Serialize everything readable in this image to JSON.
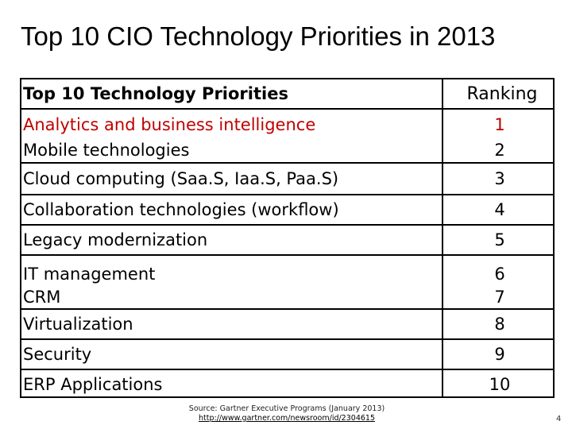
{
  "slide": {
    "title": "Top 10 CIO Technology Priorities in 2013",
    "page_number": "4"
  },
  "table": {
    "header": {
      "priority": "Top 10 Technology Priorities",
      "ranking": "Ranking"
    },
    "rows": [
      {
        "lines": [
          "Analytics and business intelligence",
          "Mobile technologies"
        ],
        "ranks": [
          "1",
          "2"
        ]
      },
      {
        "lines": [
          "Cloud computing (Saa.S, Iaa.S, Paa.S)"
        ],
        "ranks": [
          "3"
        ]
      },
      {
        "lines": [
          "Collaboration technologies (workflow)"
        ],
        "ranks": [
          "4"
        ]
      },
      {
        "lines": [
          "Legacy modernization"
        ],
        "ranks": [
          "5"
        ]
      },
      {
        "lines": [
          "IT management",
          "CRM"
        ],
        "ranks": [
          "6",
          "7"
        ]
      },
      {
        "lines": [
          "Virtualization"
        ],
        "ranks": [
          "8"
        ]
      },
      {
        "lines": [
          "Security"
        ],
        "ranks": [
          "9"
        ]
      },
      {
        "lines": [
          "ERP Applications"
        ],
        "ranks": [
          "10"
        ]
      }
    ]
  },
  "source": {
    "line1": "Source: Gartner Executive Programs (January 2013)",
    "link": "http://www.gartner.com/newsroom/id/2304615"
  },
  "colors": {
    "highlight_text": "#c00000",
    "border": "#000000"
  }
}
